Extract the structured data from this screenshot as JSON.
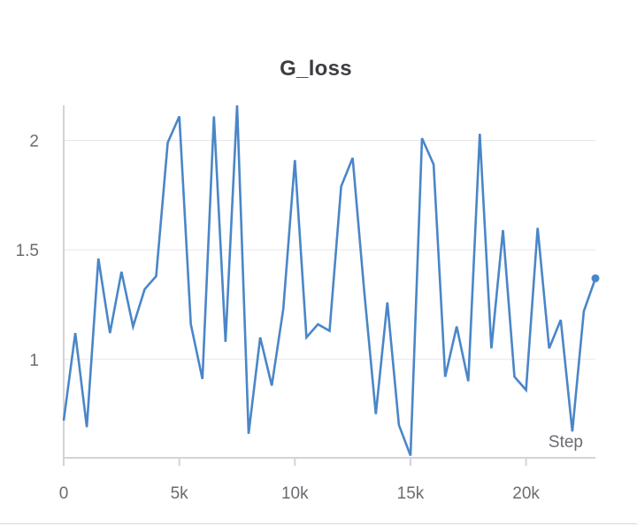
{
  "chart_data": {
    "type": "line",
    "title": "G_loss",
    "xlabel": "Step",
    "ylabel": "",
    "xlim": [
      0,
      23000
    ],
    "ylim": [
      0.55,
      2.16
    ],
    "x_ticks": [
      0,
      5000,
      10000,
      15000,
      20000
    ],
    "x_tick_labels": [
      "0",
      "5k",
      "10k",
      "15k",
      "20k"
    ],
    "y_ticks": [
      1,
      1.5,
      2
    ],
    "y_tick_labels": [
      "1",
      "1.5",
      "2"
    ],
    "grid": true,
    "line_color": "#4a86c8",
    "series": [
      {
        "x": [
          0,
          500,
          1000,
          1500,
          2000,
          2500,
          3000,
          3500,
          4000,
          4500,
          5000,
          5500,
          6000,
          6500,
          7000,
          7500,
          8000,
          8500,
          9000,
          9500,
          10000,
          10500,
          11000,
          11500,
          12000,
          12500,
          13000,
          13500,
          14000,
          14500,
          15000,
          15500,
          16000,
          16500,
          17000,
          17500,
          18000,
          18500,
          19000,
          19500,
          20000,
          20500,
          21000,
          21500,
          22000,
          22500,
          23000
        ],
        "y": [
          0.72,
          1.12,
          0.69,
          1.46,
          1.12,
          1.4,
          1.15,
          1.32,
          1.38,
          1.99,
          2.11,
          1.16,
          0.91,
          2.11,
          1.08,
          2.16,
          0.66,
          1.1,
          0.88,
          1.23,
          1.91,
          1.1,
          1.16,
          1.13,
          1.79,
          1.92,
          1.31,
          0.75,
          1.26,
          0.7,
          0.56,
          2.01,
          1.89,
          0.92,
          1.15,
          0.9,
          2.03,
          1.05,
          1.59,
          0.92,
          0.86,
          1.6,
          1.05,
          1.18,
          0.67,
          1.22,
          1.37
        ]
      }
    ]
  }
}
